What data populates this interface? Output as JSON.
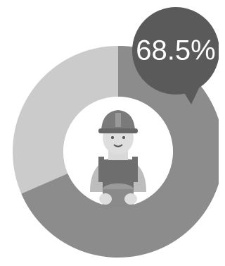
{
  "chart_data": {
    "type": "donut",
    "values": [
      68.5
    ],
    "value_labels": [
      "68.5%"
    ],
    "total": 100,
    "color": "#8c8c8c",
    "track_color": "#cbcbcb",
    "bubble_color": "#5a5a5a"
  }
}
